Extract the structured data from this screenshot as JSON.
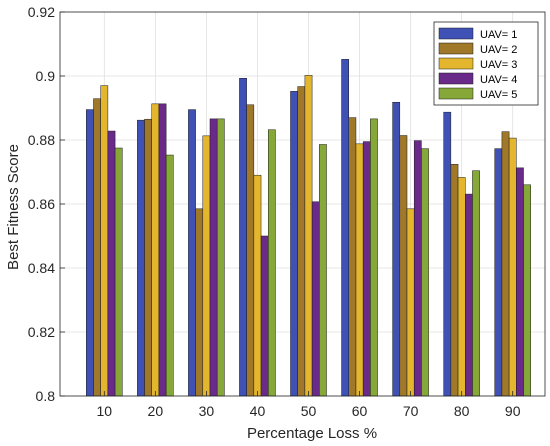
{
  "chart_data": {
    "type": "bar",
    "title": "",
    "xlabel": "Percentage Loss %",
    "ylabel": "Best Fitness Score",
    "categories": [
      "10",
      "20",
      "30",
      "40",
      "50",
      "60",
      "70",
      "80",
      "90"
    ],
    "ylim": [
      0.8,
      0.92
    ],
    "yticks": [
      "0.8",
      "0.82",
      "0.84",
      "0.86",
      "0.88",
      "0.9",
      "0.92"
    ],
    "grid": true,
    "legend_position": "top-right",
    "series": [
      {
        "name": "UAV= 1",
        "color": "#3f51b5",
        "values": [
          0.8895,
          0.8862,
          0.8895,
          0.8993,
          0.8952,
          0.9052,
          0.8918,
          0.8887,
          0.8773
        ]
      },
      {
        "name": "UAV= 2",
        "color": "#a0782a",
        "values": [
          0.8929,
          0.8865,
          0.8585,
          0.891,
          0.8967,
          0.887,
          0.8814,
          0.8724,
          0.8826
        ]
      },
      {
        "name": "UAV= 3",
        "color": "#e3b62e",
        "values": [
          0.897,
          0.8913,
          0.8813,
          0.869,
          0.9002,
          0.8788,
          0.8585,
          0.8683,
          0.8806
        ]
      },
      {
        "name": "UAV= 4",
        "color": "#6a2a8a",
        "values": [
          0.8828,
          0.8913,
          0.8866,
          0.85,
          0.8607,
          0.8795,
          0.8798,
          0.8631,
          0.8713
        ]
      },
      {
        "name": "UAV= 5",
        "color": "#86a838",
        "values": [
          0.8775,
          0.8753,
          0.8866,
          0.8832,
          0.8786,
          0.8866,
          0.8773,
          0.8704,
          0.866
        ]
      }
    ]
  }
}
